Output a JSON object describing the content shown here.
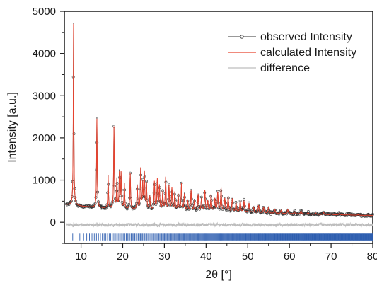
{
  "chart_data": {
    "type": "line",
    "xlabel": "2θ [°]",
    "ylabel": "Intensity [a.u.]",
    "xlim": [
      6,
      80
    ],
    "ylim": [
      -500,
      5000
    ],
    "x_ticks": [
      10,
      20,
      30,
      40,
      50,
      60,
      70,
      80
    ],
    "y_ticks": [
      0,
      1000,
      2000,
      3000,
      4000,
      5000
    ],
    "legend_position": "top-right",
    "colors": {
      "observed": "#333333",
      "calculated": "#e8432f",
      "difference": "#bdbdbd",
      "reflections": "#2f5fb0"
    },
    "series": [
      {
        "name": "observed Intensity",
        "style": "line-with-open-circles"
      },
      {
        "name": "calculated Intensity",
        "style": "line"
      },
      {
        "name": "difference",
        "style": "line"
      }
    ],
    "background": [
      [
        6,
        420
      ],
      [
        8,
        400
      ],
      [
        12,
        360
      ],
      [
        16,
        330
      ],
      [
        20,
        310
      ],
      [
        30,
        280
      ],
      [
        40,
        255
      ],
      [
        50,
        225
      ],
      [
        60,
        200
      ],
      [
        70,
        180
      ],
      [
        80,
        160
      ]
    ],
    "peaks": [
      [
        8.2,
        4700
      ],
      [
        13.8,
        2450
      ],
      [
        16.5,
        1100
      ],
      [
        17.9,
        2250
      ],
      [
        18.6,
        1000
      ],
      [
        19.2,
        1150
      ],
      [
        19.6,
        1150
      ],
      [
        20.4,
        900
      ],
      [
        21.8,
        1150
      ],
      [
        23.5,
        850
      ],
      [
        24.3,
        1250
      ],
      [
        24.8,
        900
      ],
      [
        25.2,
        1150
      ],
      [
        25.7,
        900
      ],
      [
        26.5,
        600
      ],
      [
        27.6,
        950
      ],
      [
        28.3,
        1000
      ],
      [
        28.8,
        850
      ],
      [
        29.6,
        700
      ],
      [
        30.3,
        1050
      ],
      [
        31.1,
        850
      ],
      [
        31.8,
        800
      ],
      [
        32.5,
        700
      ],
      [
        33.3,
        650
      ],
      [
        34.1,
        900
      ],
      [
        34.8,
        650
      ],
      [
        35.6,
        500
      ],
      [
        36.4,
        750
      ],
      [
        37.2,
        500
      ],
      [
        38.1,
        650
      ],
      [
        38.9,
        550
      ],
      [
        39.7,
        750
      ],
      [
        40.4,
        500
      ],
      [
        41.2,
        650
      ],
      [
        42.1,
        550
      ],
      [
        42.8,
        700
      ],
      [
        43.6,
        800
      ],
      [
        44.5,
        550
      ],
      [
        45.3,
        600
      ],
      [
        46.3,
        550
      ],
      [
        47.2,
        450
      ],
      [
        48.2,
        500
      ],
      [
        49.1,
        500
      ],
      [
        50.3,
        450
      ],
      [
        51.4,
        350
      ],
      [
        52.6,
        400
      ],
      [
        53.8,
        350
      ],
      [
        55.0,
        350
      ],
      [
        56.5,
        300
      ],
      [
        58.0,
        280
      ],
      [
        59.6,
        300
      ],
      [
        61.2,
        250
      ],
      [
        62.8,
        270
      ],
      [
        64.5,
        230
      ],
      [
        66.3,
        220
      ],
      [
        68.2,
        230
      ],
      [
        70.1,
        200
      ],
      [
        72.0,
        210
      ],
      [
        74.2,
        190
      ],
      [
        76.5,
        180
      ],
      [
        78.8,
        170
      ]
    ],
    "reflection_count": 420
  }
}
